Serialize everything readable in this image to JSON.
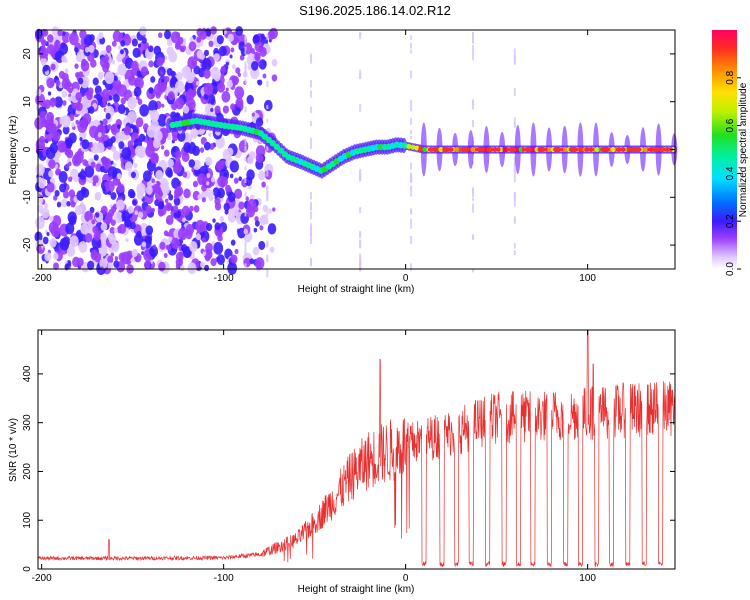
{
  "title": "S196.2025.186.14.02.R12",
  "chart_data": [
    {
      "type": "heatmap",
      "xlabel": "Height of straight line (km)",
      "ylabel": "Frequency (Hz)",
      "xlim": [
        -202,
        148
      ],
      "ylim": [
        -25,
        25
      ],
      "xticks": [
        -200,
        -100,
        0,
        100
      ],
      "yticks": [
        -20,
        -10,
        0,
        10,
        20
      ],
      "colorbar": {
        "label": "Normalized spectral amplitude",
        "range": [
          0,
          1
        ],
        "ticks": [
          0.0,
          0.2,
          0.4,
          0.6,
          0.8
        ]
      },
      "ridge": {
        "x": [
          -130,
          -115,
          -100,
          -90,
          -80,
          -72,
          -65,
          -58,
          -52,
          -46,
          -40,
          -34,
          -28,
          -22,
          -16,
          -10,
          -5,
          0,
          10,
          30,
          60,
          90,
          120,
          148
        ],
        "y": [
          5,
          6,
          5,
          4.5,
          3.5,
          1,
          -1.5,
          -2.5,
          -3.5,
          -4.5,
          -3,
          -1.5,
          -0.5,
          0,
          0.5,
          0.5,
          1,
          0.8,
          0,
          0,
          0,
          0,
          0,
          0
        ]
      }
    },
    {
      "type": "line",
      "xlabel": "Height of straight line (km)",
      "ylabel": "SNR (10 * v/v)",
      "xlim": [
        -202,
        148
      ],
      "ylim": [
        0,
        490
      ],
      "xticks": [
        -200,
        -100,
        0,
        100
      ],
      "yticks": [
        0,
        100,
        200,
        300,
        400
      ],
      "color": "#e83030",
      "envelope": {
        "x": [
          -200,
          -150,
          -100,
          -80,
          -70,
          -60,
          -50,
          -40,
          -30,
          -20,
          -10,
          0,
          10,
          20,
          30,
          40,
          50,
          60,
          80,
          100,
          120,
          148
        ],
        "y": [
          22,
          22,
          23,
          30,
          45,
          60,
          95,
          140,
          190,
          225,
          240,
          255,
          265,
          275,
          285,
          300,
          310,
          310,
          315,
          320,
          325,
          330
        ]
      },
      "spikes": [
        {
          "x": -163,
          "y": 60
        },
        {
          "x": -14,
          "y": 430
        },
        {
          "x": 100,
          "y": 490
        },
        {
          "x": 103,
          "y": 420
        }
      ],
      "dropouts_x": [
        10,
        20,
        28,
        36,
        45,
        54,
        62,
        70,
        79,
        88,
        96,
        105,
        113,
        122,
        131,
        140
      ]
    }
  ]
}
